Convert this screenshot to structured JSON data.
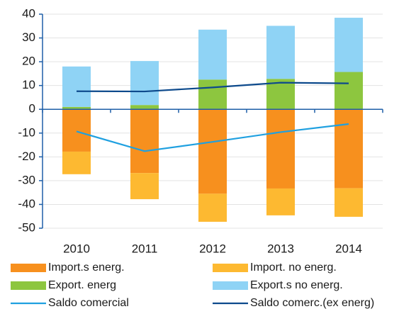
{
  "chart_data": {
    "type": "bar",
    "categories": [
      "2010",
      "2011",
      "2012",
      "2013",
      "2014"
    ],
    "series": [
      {
        "name": "Import.s energ.",
        "type": "bar",
        "color": "#f7901e",
        "values": [
          -17.8,
          -26.8,
          -35.5,
          -33.3,
          -33.2
        ]
      },
      {
        "name": "Import. no energ.",
        "type": "bar",
        "color": "#fdb931",
        "values": [
          -9.5,
          -11,
          -11.8,
          -11.3,
          -12
        ]
      },
      {
        "name": "Export. energ",
        "type": "bar",
        "color": "#8dc63f",
        "values": [
          1,
          1.8,
          12.5,
          12.8,
          15.7
        ]
      },
      {
        "name": "Export.s no energ.",
        "type": "bar",
        "color": "#8fd3f5",
        "values": [
          17,
          18.5,
          21,
          22.3,
          22.8
        ]
      },
      {
        "name": "Saldo comercial",
        "type": "line",
        "color": "#1fa0e0",
        "values": [
          -9.3,
          -17.6,
          -13.7,
          -9.6,
          -6.2
        ]
      },
      {
        "name": "Saldo comerc.(ex energ)",
        "type": "line",
        "color": "#0d4a8c",
        "values": [
          7.6,
          7.5,
          9.2,
          11.2,
          10.9
        ]
      }
    ],
    "ylim": [
      -50,
      40
    ],
    "yticks": [
      -50,
      -40,
      -30,
      -20,
      -10,
      0,
      10,
      20,
      30,
      40
    ],
    "grid": true
  }
}
